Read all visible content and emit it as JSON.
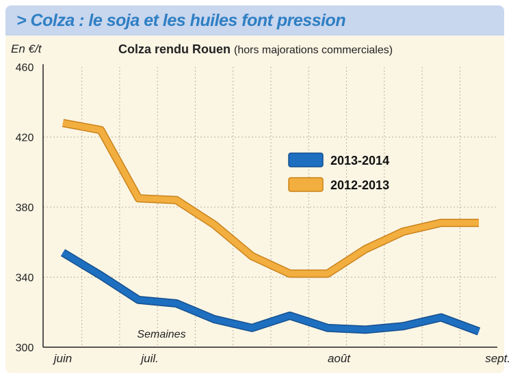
{
  "banner": {
    "title": "> Colza : le soja et les huiles font pression"
  },
  "unit_label": "En €/t",
  "chart_data": {
    "type": "line",
    "title": "Colza rendu Rouen",
    "subtitle": "(hors majorations commerciales)",
    "xlabel": "Semaines",
    "ylabel": "En €/t",
    "ylim": [
      300,
      460
    ],
    "yticks": [
      300,
      340,
      380,
      420,
      460
    ],
    "week_count": 12,
    "x": [
      0,
      1,
      2,
      3,
      4,
      5,
      6,
      7,
      8,
      9,
      10,
      11
    ],
    "month_labels": [
      {
        "label": "juin",
        "week": 0
      },
      {
        "label": "juil.",
        "week": 2.3
      },
      {
        "label": "août",
        "week": 7.3
      },
      {
        "label": "sept.",
        "week": 11.5
      }
    ],
    "grid": true,
    "legend_position": "right",
    "series": [
      {
        "name": "2013-2014",
        "color": "#1f6fc0",
        "outline": "#144f8e",
        "values": [
          354,
          341,
          327,
          325,
          316,
          311,
          318,
          311,
          310,
          312,
          317,
          309
        ]
      },
      {
        "name": "2012-2013",
        "color": "#f2ae3e",
        "outline": "#c9831b",
        "values": [
          428,
          424,
          385,
          384,
          370,
          352,
          342,
          342,
          356,
          366,
          371,
          371
        ]
      }
    ]
  }
}
